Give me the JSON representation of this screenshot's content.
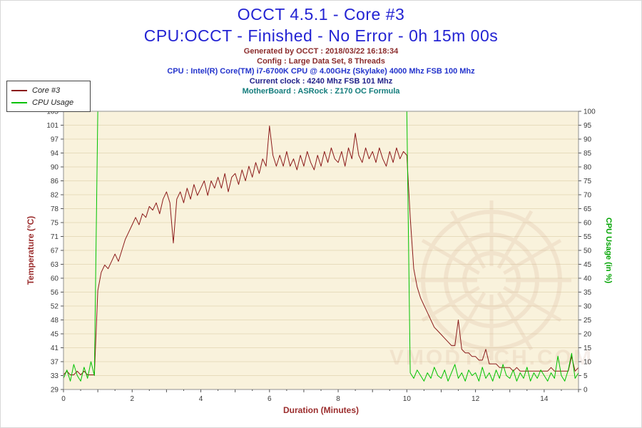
{
  "header": {
    "title_color": "#2323D3",
    "title_line1": "OCCT 4.5.1 - Core #3",
    "title_line2": "CPU:OCCT - Finished - No Error - 0h 15m 00s",
    "info_lines": [
      {
        "text": "Generated by OCCT : 2018/03/22 16:18:34",
        "color": "#8B2C2C"
      },
      {
        "text": "Config : Large Data Set, 8 Threads",
        "color": "#8B2C2C"
      },
      {
        "text": "CPU : Intel(R) Core(TM) i7-6700K CPU @ 4.00GHz (Skylake) 4000 Mhz FSB 100 Mhz",
        "color": "#2333CC"
      },
      {
        "text": "Current clock : 4240 Mhz FSB 101 Mhz",
        "color": "#23238B"
      },
      {
        "text": "MotherBoard : ASRock : Z170 OC Formula",
        "color": "#137C7C"
      }
    ]
  },
  "legend": {
    "items": [
      {
        "label": "Core #3",
        "color": "#8B1A1A"
      },
      {
        "label": "CPU Usage",
        "color": "#00C200"
      }
    ]
  },
  "chart_data": {
    "type": "line",
    "x_label": "Duration (Minutes)",
    "x_range": [
      0,
      15
    ],
    "x_ticks": [
      0,
      2,
      4,
      6,
      8,
      10,
      12,
      14
    ],
    "plot_bg": "#F9F2DC",
    "grid_color": "#E7DCBC",
    "border_color": "#909090",
    "tick_text_color": "#3A3A3A",
    "watermark": "VMODTECH.COM",
    "watermark_color": "#CC9980",
    "left_axis": {
      "label": "Temperature (°C)",
      "color": "#9B2D2D",
      "range": [
        29,
        105
      ],
      "ticks": [
        105,
        101,
        97,
        94,
        90,
        86,
        82,
        78,
        75,
        71,
        67,
        63,
        60,
        56,
        52,
        48,
        45,
        41,
        37,
        33,
        29
      ]
    },
    "right_axis": {
      "label": "CPU Usage (in %)",
      "color": "#00A300",
      "range": [
        0,
        100
      ],
      "ticks": [
        100,
        95,
        90,
        85,
        80,
        75,
        70,
        65,
        60,
        55,
        50,
        45,
        40,
        35,
        30,
        25,
        20,
        15,
        10,
        5,
        0
      ]
    },
    "series": [
      {
        "name": "Core #3",
        "axis": "left",
        "color": "#8B1A1A",
        "t0": 0,
        "dt": 0.1,
        "values": [
          33,
          34,
          33,
          33,
          34,
          33,
          34,
          33,
          33,
          33,
          56,
          61,
          63,
          62,
          64,
          66,
          64,
          67,
          70,
          72,
          74,
          76,
          74,
          77,
          76,
          79,
          78,
          80,
          77,
          81,
          83,
          80,
          69,
          81,
          83,
          80,
          84,
          81,
          85,
          82,
          84,
          86,
          82,
          86,
          84,
          87,
          84,
          88,
          83,
          87,
          88,
          85,
          89,
          86,
          90,
          87,
          91,
          88,
          92,
          90,
          101,
          93,
          90,
          93,
          90,
          94,
          90,
          92,
          89,
          93,
          90,
          94,
          91,
          89,
          93,
          90,
          94,
          91,
          95,
          92,
          91,
          94,
          90,
          95,
          92,
          99,
          93,
          91,
          95,
          92,
          94,
          91,
          95,
          92,
          90,
          94,
          91,
          95,
          92,
          94,
          93,
          76,
          62,
          57,
          54,
          52,
          50,
          48,
          46,
          45,
          44,
          43,
          42,
          41,
          41,
          48,
          40,
          39,
          39,
          38,
          38,
          37,
          37,
          40,
          36,
          36,
          36,
          35,
          35,
          35,
          35,
          34,
          35,
          34,
          34,
          34,
          34,
          34,
          34,
          34,
          34,
          34,
          35,
          34,
          34,
          34,
          34,
          34,
          38,
          34,
          35
        ]
      },
      {
        "name": "CPU Usage",
        "axis": "right",
        "color": "#00C200",
        "t0": 0,
        "dt": 0.1,
        "values": [
          4,
          7,
          3,
          9,
          5,
          3,
          8,
          4,
          10,
          5,
          100,
          100,
          100,
          100,
          100,
          100,
          100,
          100,
          100,
          100,
          100,
          100,
          100,
          100,
          100,
          100,
          100,
          100,
          100,
          100,
          100,
          100,
          100,
          100,
          100,
          100,
          100,
          100,
          100,
          100,
          100,
          100,
          100,
          100,
          100,
          100,
          100,
          100,
          100,
          100,
          100,
          100,
          100,
          100,
          100,
          100,
          100,
          100,
          100,
          100,
          100,
          100,
          100,
          100,
          100,
          100,
          100,
          100,
          100,
          100,
          100,
          100,
          100,
          100,
          100,
          100,
          100,
          100,
          100,
          100,
          100,
          100,
          100,
          100,
          100,
          100,
          100,
          100,
          100,
          100,
          100,
          100,
          100,
          100,
          100,
          100,
          100,
          100,
          100,
          100,
          100,
          6,
          4,
          7,
          5,
          3,
          6,
          4,
          8,
          5,
          4,
          7,
          3,
          6,
          9,
          4,
          6,
          3,
          7,
          5,
          6,
          3,
          8,
          4,
          6,
          3,
          7,
          4,
          9,
          5,
          4,
          7,
          3,
          6,
          4,
          8,
          3,
          6,
          4,
          7,
          5,
          3,
          6,
          4,
          12,
          5,
          3,
          7,
          13,
          4,
          6
        ]
      }
    ]
  }
}
